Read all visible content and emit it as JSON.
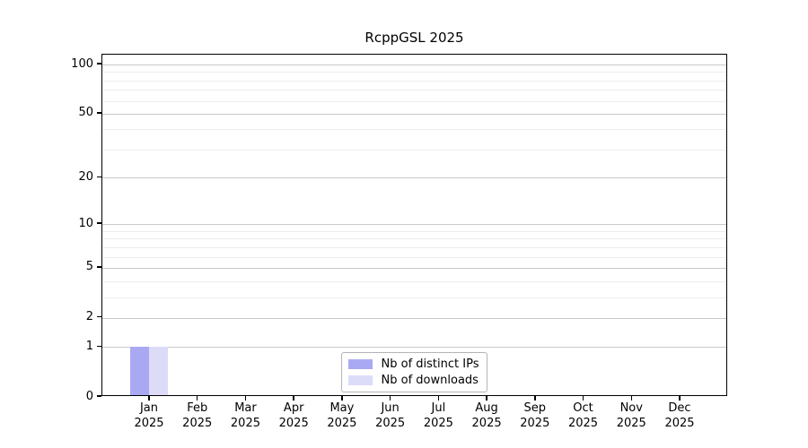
{
  "chart_data": {
    "type": "bar",
    "title": "RcppGSL 2025",
    "categories": [
      "Jan",
      "Feb",
      "Mar",
      "Apr",
      "May",
      "Jun",
      "Jul",
      "Aug",
      "Sep",
      "Oct",
      "Nov",
      "Dec"
    ],
    "year": "2025",
    "series": [
      {
        "name": "Nb of distinct IPs",
        "color": "#a9a9f3",
        "values": [
          1,
          0,
          0,
          0,
          0,
          0,
          0,
          0,
          0,
          0,
          0,
          0
        ]
      },
      {
        "name": "Nb of downloads",
        "color": "#dcdcf8",
        "values": [
          1,
          0,
          0,
          0,
          0,
          0,
          0,
          0,
          0,
          0,
          0,
          0
        ]
      }
    ],
    "y_axis": {
      "scale": "log1p",
      "range": [
        0,
        100
      ],
      "ticks": [
        0,
        1,
        2,
        5,
        10,
        20,
        50,
        100
      ],
      "minor_gridlines": [
        3,
        4,
        6,
        7,
        8,
        9,
        30,
        40,
        60,
        70,
        80,
        90
      ]
    },
    "x_axis": {
      "tick_label_lines": 2
    },
    "legend": {
      "position": "lower center",
      "entries": [
        "Nb of distinct IPs",
        "Nb of downloads"
      ]
    },
    "layout_colors": {
      "major_grid": "#c9c9c9",
      "minor_grid": "#ececec",
      "spine": "#000000",
      "background": "#ffffff"
    }
  }
}
